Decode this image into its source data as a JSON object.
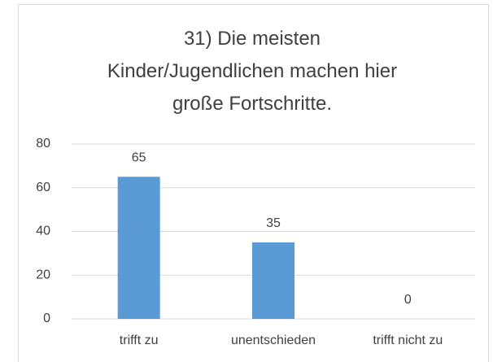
{
  "chart_data": {
    "type": "bar",
    "title": "31) Die meisten Kinder/Jugendlichen machen hier große Fortschritte.",
    "categories": [
      "trifft zu",
      "unentschieden",
      "trifft nicht zu"
    ],
    "values": [
      65,
      35,
      0
    ],
    "color": "#5b9bd5",
    "ylim": [
      0,
      80
    ],
    "yticks": [
      0,
      20,
      40,
      60,
      80
    ],
    "grid": true
  }
}
